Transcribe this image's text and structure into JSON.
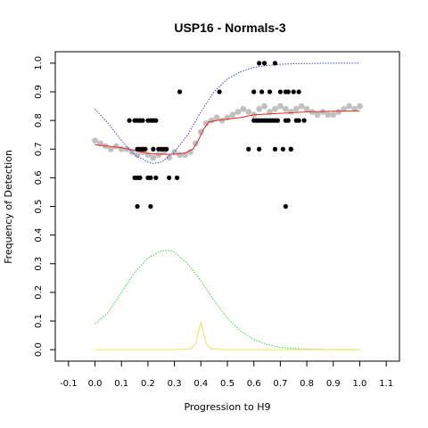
{
  "chart_data": {
    "type": "scatter",
    "title": "USP16 - Normals-3",
    "xlabel": "Progression to H9",
    "ylabel": "Frequency of Detection",
    "xlim": [
      -0.15,
      1.15
    ],
    "ylim": [
      -0.04,
      1.04
    ],
    "xticks": [
      -0.1,
      0.0,
      0.1,
      0.2,
      0.3,
      0.4,
      0.5,
      0.6,
      0.7,
      0.8,
      0.9,
      1.0,
      1.1
    ],
    "xtick_labels": [
      "-0.1",
      "0.0",
      "0.1",
      "0.2",
      "0.3",
      "0.4",
      "0.5",
      "0.6",
      "0.7",
      "0.8",
      "0.9",
      "1.0",
      "1.1"
    ],
    "yticks": [
      0.0,
      0.1,
      0.2,
      0.3,
      0.4,
      0.5,
      0.6,
      0.7,
      0.8,
      0.9,
      1.0
    ],
    "ytick_labels": [
      "0.0",
      "0.1",
      "0.2",
      "0.3",
      "0.4",
      "0.5",
      "0.6",
      "0.7",
      "0.8",
      "0.9",
      "1.0"
    ],
    "grid": false,
    "series": [
      {
        "kind": "points",
        "color": "#000000",
        "x": [
          0.13,
          0.15,
          0.16,
          0.17,
          0.17,
          0.18,
          0.18,
          0.19,
          0.2,
          0.21,
          0.22,
          0.23,
          0.16,
          0.17,
          0.18,
          0.15,
          0.16,
          0.17,
          0.2,
          0.21,
          0.23,
          0.22,
          0.24,
          0.25,
          0.26,
          0.27,
          0.28,
          0.31,
          0.32,
          0.16,
          0.21,
          0.47,
          0.58,
          0.6,
          0.61,
          0.62,
          0.63,
          0.64,
          0.65,
          0.66,
          0.67,
          0.68,
          0.6,
          0.63,
          0.66,
          0.7,
          0.72,
          0.73,
          0.75,
          0.77,
          0.79,
          0.62,
          0.64,
          0.68,
          0.69,
          0.72,
          0.73,
          0.77,
          0.62,
          0.68,
          0.74,
          0.76,
          0.71,
          0.74,
          0.72
        ],
        "y": [
          0.8,
          0.8,
          0.8,
          0.8,
          0.8,
          0.8,
          0.7,
          0.7,
          0.8,
          0.8,
          0.8,
          0.8,
          0.7,
          0.7,
          0.7,
          0.6,
          0.6,
          0.6,
          0.6,
          0.6,
          0.6,
          0.7,
          0.7,
          0.7,
          0.7,
          0.7,
          0.6,
          0.6,
          0.9,
          0.5,
          0.5,
          0.9,
          0.7,
          0.8,
          0.8,
          0.8,
          0.8,
          0.8,
          0.8,
          0.8,
          0.8,
          0.8,
          0.9,
          0.9,
          0.9,
          0.9,
          0.9,
          0.9,
          0.9,
          0.9,
          0.8,
          1.0,
          1.0,
          1.0,
          0.8,
          0.8,
          0.8,
          0.8,
          0.7,
          0.7,
          0.7,
          0.8,
          0.7,
          0.7,
          0.5
        ]
      },
      {
        "kind": "smooth-points",
        "color": "#c0c0c0",
        "x": [
          0.0,
          0.02,
          0.04,
          0.06,
          0.08,
          0.1,
          0.12,
          0.14,
          0.16,
          0.18,
          0.2,
          0.22,
          0.24,
          0.26,
          0.28,
          0.3,
          0.32,
          0.34,
          0.36,
          0.38,
          0.4,
          0.42,
          0.44,
          0.46,
          0.48,
          0.5,
          0.52,
          0.54,
          0.56,
          0.58,
          0.6,
          0.62,
          0.64,
          0.66,
          0.68,
          0.7,
          0.72,
          0.74,
          0.76,
          0.78,
          0.8,
          0.82,
          0.84,
          0.86,
          0.88,
          0.9,
          0.92,
          0.94,
          0.96,
          0.98,
          1.0
        ],
        "y": [
          0.73,
          0.72,
          0.71,
          0.7,
          0.71,
          0.7,
          0.7,
          0.69,
          0.68,
          0.69,
          0.68,
          0.67,
          0.68,
          0.69,
          0.67,
          0.69,
          0.68,
          0.68,
          0.69,
          0.72,
          0.76,
          0.79,
          0.8,
          0.81,
          0.8,
          0.81,
          0.82,
          0.83,
          0.84,
          0.83,
          0.82,
          0.84,
          0.85,
          0.83,
          0.84,
          0.85,
          0.84,
          0.83,
          0.84,
          0.85,
          0.84,
          0.83,
          0.82,
          0.83,
          0.82,
          0.82,
          0.83,
          0.84,
          0.85,
          0.84,
          0.85
        ]
      },
      {
        "kind": "line",
        "color": "#e8281e",
        "x": [
          0.0,
          0.05,
          0.1,
          0.15,
          0.2,
          0.25,
          0.3,
          0.34,
          0.37,
          0.39,
          0.41,
          0.43,
          0.46,
          0.5,
          0.55,
          0.6,
          0.7,
          0.8,
          0.9,
          1.0
        ],
        "y": [
          0.715,
          0.71,
          0.705,
          0.695,
          0.685,
          0.682,
          0.682,
          0.686,
          0.7,
          0.73,
          0.77,
          0.795,
          0.8,
          0.805,
          0.81,
          0.82,
          0.825,
          0.83,
          0.832,
          0.834
        ]
      },
      {
        "kind": "dotted-line",
        "color": "#4040e6",
        "x": [
          0.0,
          0.05,
          0.1,
          0.15,
          0.2,
          0.22,
          0.25,
          0.3,
          0.35,
          0.4,
          0.45,
          0.5,
          0.55,
          0.6,
          0.65,
          0.7,
          0.75,
          0.8,
          0.9,
          1.0
        ],
        "y": [
          0.84,
          0.79,
          0.73,
          0.68,
          0.655,
          0.65,
          0.655,
          0.69,
          0.75,
          0.83,
          0.9,
          0.945,
          0.97,
          0.985,
          0.992,
          0.996,
          0.998,
          0.999,
          1.0,
          1.0
        ]
      },
      {
        "kind": "dotted-line",
        "color": "#40d040",
        "x": [
          0.0,
          0.05,
          0.1,
          0.15,
          0.2,
          0.25,
          0.28,
          0.3,
          0.35,
          0.4,
          0.45,
          0.5,
          0.55,
          0.6,
          0.65,
          0.7,
          0.75,
          0.8,
          0.9,
          1.0
        ],
        "y": [
          0.09,
          0.13,
          0.2,
          0.27,
          0.32,
          0.345,
          0.347,
          0.34,
          0.3,
          0.24,
          0.17,
          0.11,
          0.065,
          0.035,
          0.018,
          0.008,
          0.004,
          0.002,
          0.0,
          0.0
        ]
      },
      {
        "kind": "line",
        "color": "#e6e65a",
        "x": [
          0.0,
          0.3,
          0.36,
          0.38,
          0.39,
          0.4,
          0.41,
          0.42,
          0.44,
          0.5,
          1.0
        ],
        "y": [
          0.0,
          0.0,
          0.002,
          0.02,
          0.06,
          0.095,
          0.06,
          0.02,
          0.002,
          0.0,
          0.0
        ]
      }
    ]
  }
}
